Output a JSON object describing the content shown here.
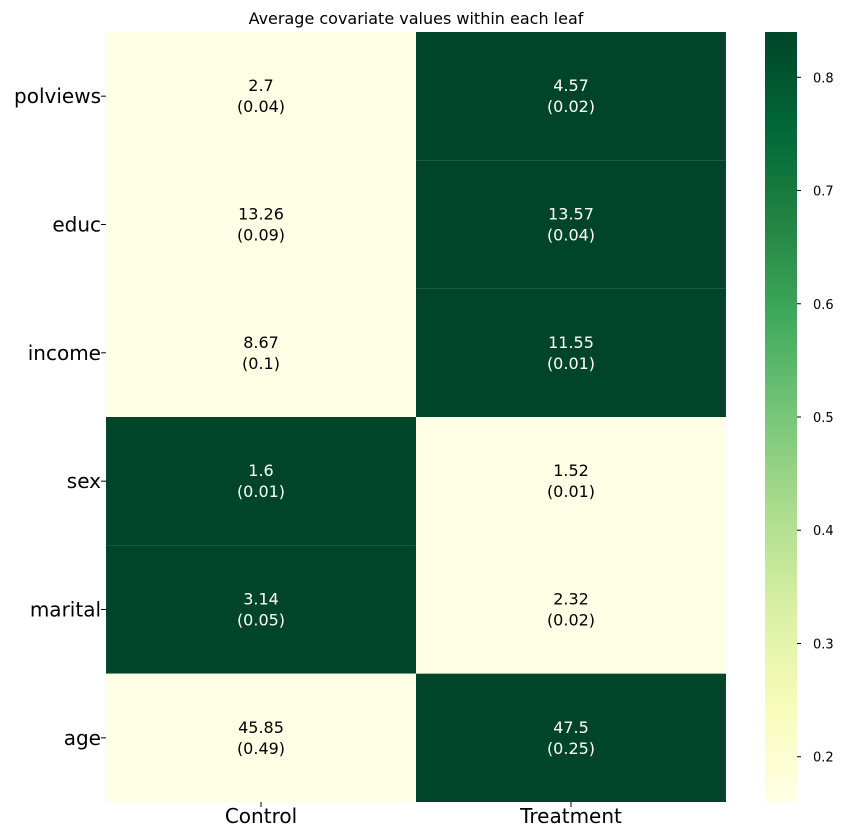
{
  "chart_data": {
    "type": "heatmap",
    "title": "Average covariate values within each leaf",
    "columns": [
      "Control",
      "Treatment"
    ],
    "rows": [
      "polviews",
      "educ",
      "income",
      "sex",
      "marital",
      "age"
    ],
    "cells": [
      [
        {
          "mean": "2.7",
          "se": "(0.04)",
          "value": 0.16
        },
        {
          "mean": "4.57",
          "se": "(0.02)",
          "value": 0.84
        }
      ],
      [
        {
          "mean": "13.26",
          "se": "(0.09)",
          "value": 0.16
        },
        {
          "mean": "13.57",
          "se": "(0.04)",
          "value": 0.84
        }
      ],
      [
        {
          "mean": "8.67",
          "se": "(0.1)",
          "value": 0.16
        },
        {
          "mean": "11.55",
          "se": "(0.01)",
          "value": 0.84
        }
      ],
      [
        {
          "mean": "1.6",
          "se": "(0.01)",
          "value": 0.84
        },
        {
          "mean": "1.52",
          "se": "(0.01)",
          "value": 0.16
        }
      ],
      [
        {
          "mean": "3.14",
          "se": "(0.05)",
          "value": 0.84
        },
        {
          "mean": "2.32",
          "se": "(0.02)",
          "value": 0.16
        }
      ],
      [
        {
          "mean": "45.85",
          "se": "(0.49)",
          "value": 0.16
        },
        {
          "mean": "47.5",
          "se": "(0.25)",
          "value": 0.84
        }
      ]
    ],
    "colorbar": {
      "colormap": "YlGn",
      "range": [
        0.16,
        0.84
      ],
      "ticks": [
        0.2,
        0.3,
        0.4,
        0.5,
        0.6,
        0.7,
        0.8
      ]
    },
    "colors": {
      "low": "#ffffe5",
      "high": "#004529"
    }
  }
}
